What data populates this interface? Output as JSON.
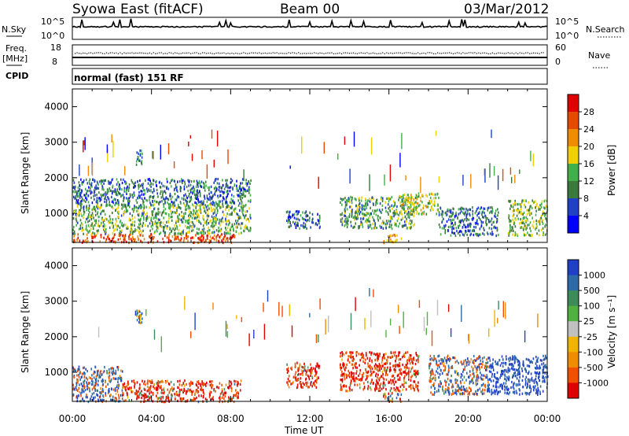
{
  "header": {
    "station": "Syowa East (fitACF)",
    "beam": "Beam 00",
    "date": "03/Mar/2012"
  },
  "panels": {
    "nsky": {
      "label": "N.Sky",
      "tick_top": "10^5",
      "tick_bottom": "10^0",
      "right_label": "N.Search",
      "right_tick_top": "10^5",
      "right_tick_bottom": "10^0"
    },
    "freq": {
      "label_top": "Freq.",
      "label_bottom": "[MHz]",
      "tick_top": "18",
      "tick_bottom": "8",
      "right_label": "Nave",
      "right_tick_top": "60",
      "right_tick_bottom": "0"
    },
    "cpid": {
      "label": "CPID",
      "text": "normal (fast) 151 RF"
    }
  },
  "axes": {
    "ylabel": "Slant Range [km]",
    "y_ticks": [
      "1000",
      "2000",
      "3000",
      "4000"
    ],
    "x_ticks": [
      "00:00",
      "04:00",
      "08:00",
      "12:00",
      "16:00",
      "20:00",
      "00:00"
    ],
    "xlabel": "Time UT"
  },
  "colorbars": {
    "power": {
      "label": "Power [dB]",
      "ticks": [
        "4",
        "8",
        "12",
        "16",
        "20",
        "24",
        "28"
      ]
    },
    "velocity": {
      "label": "Velocity [m s⁻¹]",
      "ticks": [
        "1000",
        "500",
        "100",
        "25",
        "-25",
        "-100",
        "-500",
        "-1000"
      ]
    }
  },
  "chart_data": [
    {
      "type": "heatmap",
      "name": "power",
      "x_range_hours": [
        0,
        24
      ],
      "y_range_km": [
        180,
        4500
      ],
      "colorbar_range_db": [
        0,
        32
      ],
      "colors": [
        "#0000ff",
        "#2040c8",
        "#3c7a3c",
        "#42b04a",
        "#f0d000",
        "#f08c00",
        "#e64a00",
        "#e00000"
      ],
      "echo_regions": [
        {
          "t_start": 0.0,
          "t_end": 8.2,
          "r_min": 200,
          "r_max": 450,
          "db": 26
        },
        {
          "t_start": 0.0,
          "t_end": 9.0,
          "r_min": 450,
          "r_max": 1300,
          "db": 13
        },
        {
          "t_start": 0.0,
          "t_end": 9.0,
          "r_min": 1300,
          "r_max": 2000,
          "db": 8
        },
        {
          "t_start": 3.2,
          "t_end": 3.5,
          "r_min": 2400,
          "r_max": 2800,
          "db": 10
        },
        {
          "t_start": 10.8,
          "t_end": 12.5,
          "r_min": 600,
          "r_max": 1100,
          "db": 8
        },
        {
          "t_start": 13.5,
          "t_end": 17.3,
          "r_min": 600,
          "r_max": 1500,
          "db": 12
        },
        {
          "t_start": 15.7,
          "t_end": 16.6,
          "r_min": 200,
          "r_max": 450,
          "db": 22
        },
        {
          "t_start": 16.5,
          "t_end": 18.5,
          "r_min": 1000,
          "r_max": 1600,
          "db": 16
        },
        {
          "t_start": 18.5,
          "t_end": 21.5,
          "r_min": 400,
          "r_max": 1200,
          "db": 8
        },
        {
          "t_start": 22.0,
          "t_end": 24.0,
          "r_min": 400,
          "r_max": 1400,
          "db": 14
        }
      ]
    },
    {
      "type": "heatmap",
      "name": "velocity",
      "x_range_hours": [
        0,
        24
      ],
      "y_range_km": [
        180,
        4500
      ],
      "colorbar_range_ms": [
        -1000,
        1000
      ],
      "colors": [
        "#e00000",
        "#f05000",
        "#f08c00",
        "#f0b400",
        "#c0c0c0",
        "#50b040",
        "#3c8c5a",
        "#2e6aa8",
        "#2040c8"
      ],
      "echo_regions": [
        {
          "t_start": 0.0,
          "t_end": 2.5,
          "r_min": 200,
          "r_max": 1200,
          "v": 80
        },
        {
          "t_start": 2.5,
          "t_end": 8.5,
          "r_min": 200,
          "r_max": 800,
          "v": -200
        },
        {
          "t_start": 3.2,
          "t_end": 3.5,
          "r_min": 2400,
          "r_max": 2800,
          "v": 150
        },
        {
          "t_start": 10.8,
          "t_end": 12.5,
          "r_min": 600,
          "r_max": 1300,
          "v": -180
        },
        {
          "t_start": 13.5,
          "t_end": 17.5,
          "r_min": 500,
          "r_max": 1600,
          "v": -220
        },
        {
          "t_start": 15.7,
          "t_end": 16.6,
          "r_min": 200,
          "r_max": 450,
          "v": -40
        },
        {
          "t_start": 18.0,
          "t_end": 21.0,
          "r_min": 400,
          "r_max": 1500,
          "v": 60
        },
        {
          "t_start": 21.0,
          "t_end": 24.0,
          "r_min": 400,
          "r_max": 1500,
          "v": 300
        }
      ]
    }
  ]
}
